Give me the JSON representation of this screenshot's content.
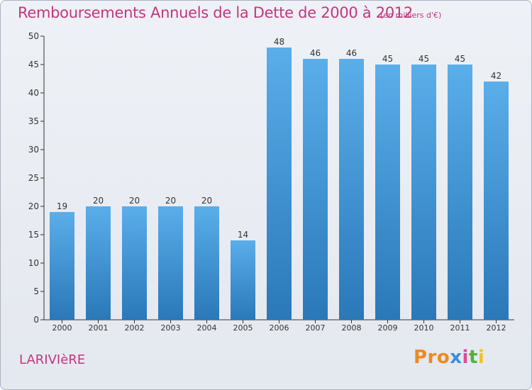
{
  "header": {
    "title": "Remboursements Annuels de la Dette de 2000 à 2012",
    "unit": "(en milliers d'€)"
  },
  "footer": {
    "commune": "LARIVIèRE",
    "logo_parts": [
      "Pro",
      "x",
      "i",
      "t",
      "i"
    ]
  },
  "colors": {
    "bar_light": "#5aaeea",
    "bar_dark": "#2a78b8",
    "title": "#c2377e"
  },
  "chart_data": {
    "type": "bar",
    "title": "Remboursements Annuels de la Dette de 2000 à 2012",
    "xlabel": "",
    "ylabel": "",
    "categories": [
      "2000",
      "2001",
      "2002",
      "2003",
      "2004",
      "2005",
      "2006",
      "2007",
      "2008",
      "2009",
      "2010",
      "2011",
      "2012"
    ],
    "values": [
      19,
      20,
      20,
      20,
      20,
      14,
      48,
      46,
      46,
      45,
      45,
      45,
      42
    ],
    "ylim": [
      0,
      50
    ],
    "yticks": [
      0,
      5,
      10,
      15,
      20,
      25,
      30,
      35,
      40,
      45,
      50
    ],
    "grid": false,
    "data_labels": true
  }
}
